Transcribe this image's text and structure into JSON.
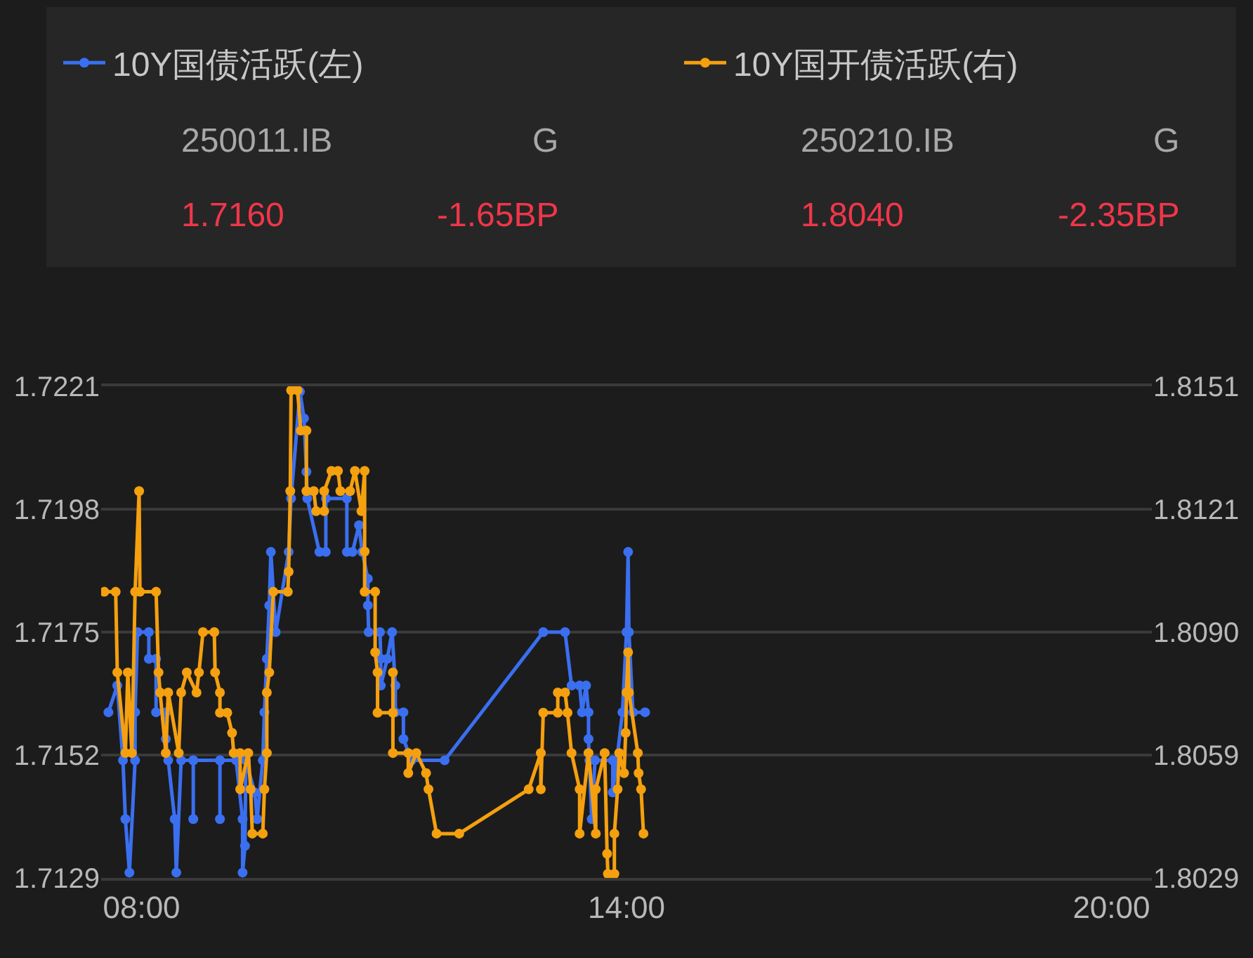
{
  "chart_data": {
    "type": "line",
    "xlim": [
      7.5,
      20.5
    ],
    "xticks": [
      {
        "value": 8,
        "label": "08:00"
      },
      {
        "value": 14,
        "label": "14:00"
      },
      {
        "value": 20,
        "label": "20:00"
      }
    ],
    "ylim": [
      1.7129,
      1.7221
    ],
    "yticks": [
      1.7129,
      1.7152,
      1.7175,
      1.7198,
      1.7221
    ],
    "y2lim": [
      1.8029,
      1.8151
    ],
    "y2ticks": [
      1.8029,
      {
        "value": 1.80595,
        "label": "1.8059"
      },
      {
        "value": 1.809,
        "label": "1.8090"
      },
      {
        "value": 1.81205,
        "label": "1.8121"
      },
      1.8151
    ],
    "grid": "y",
    "legend": "top",
    "marker": "circle",
    "line_style": "solid",
    "annotations": [
      "250011.IB",
      "G",
      "1.7160",
      "-1.65BP",
      "250210.IB",
      "G",
      "1.8040",
      "-2.35BP"
    ],
    "series": [
      {
        "name": "10Y国债活跃(左)",
        "color": "#3a6ff0",
        "x": [
          7.59,
          7.7,
          7.77,
          7.8,
          7.85,
          7.92,
          7.92,
          7.95,
          8.09,
          8.09,
          8.18,
          8.18,
          8.3,
          8.3,
          8.33,
          8.41,
          8.43,
          8.49,
          8.64,
          8.64,
          8.64,
          8.97,
          8.97,
          8.97,
          9.17,
          9.25,
          9.25,
          9.28,
          9.29,
          9.4,
          9.43,
          9.5,
          9.52,
          9.55,
          9.58,
          9.6,
          9.66,
          9.82,
          9.85,
          9.96,
          10.01,
          10.04,
          10.05,
          10.2,
          10.28,
          10.28,
          10.54,
          10.54,
          10.61,
          10.69,
          10.73,
          10.8,
          10.8,
          10.81,
          10.95,
          10.96,
          10.96,
          11.04,
          11.1,
          11.14,
          11.14,
          11.24,
          11.24,
          11.34,
          11.75,
          12.97,
          13.24,
          13.32,
          13.42,
          13.45,
          13.5,
          13.53,
          13.53,
          13.54,
          13.57,
          13.61,
          13.83,
          13.83,
          13.88,
          13.95,
          14.0,
          14.02,
          14.03,
          14.08,
          14.23
        ],
        "values": [
          1.716,
          1.7165,
          1.7151,
          1.714,
          1.713,
          1.7151,
          1.716,
          1.7175,
          1.7175,
          1.717,
          1.717,
          1.716,
          1.716,
          1.7155,
          1.7151,
          1.714,
          1.713,
          1.7151,
          1.7151,
          1.714,
          1.7151,
          1.7151,
          1.714,
          1.7151,
          1.7151,
          1.714,
          1.713,
          1.7135,
          1.7151,
          1.7145,
          1.714,
          1.7151,
          1.716,
          1.717,
          1.718,
          1.719,
          1.7175,
          1.719,
          1.72,
          1.722,
          1.7215,
          1.7205,
          1.72,
          1.719,
          1.719,
          1.72,
          1.72,
          1.719,
          1.719,
          1.7195,
          1.719,
          1.7185,
          1.718,
          1.7175,
          1.7175,
          1.717,
          1.7165,
          1.717,
          1.7175,
          1.7165,
          1.716,
          1.716,
          1.7155,
          1.7151,
          1.7151,
          1.7175,
          1.7175,
          1.7165,
          1.7165,
          1.716,
          1.7165,
          1.716,
          1.7155,
          1.7151,
          1.714,
          1.7151,
          1.7151,
          1.7145,
          1.7151,
          1.716,
          1.7175,
          1.719,
          1.7175,
          1.716,
          1.716
        ]
      },
      {
        "name": "10Y国开债活跃(右)",
        "color": "#f5a00f",
        "axis": "y2",
        "x": [
          7.54,
          7.68,
          7.7,
          7.8,
          7.83,
          7.88,
          7.92,
          7.97,
          7.98,
          8.18,
          8.21,
          8.23,
          8.3,
          8.33,
          8.46,
          8.49,
          8.56,
          8.68,
          8.71,
          8.76,
          8.9,
          8.91,
          8.97,
          8.97,
          9.06,
          9.12,
          9.14,
          9.22,
          9.22,
          9.32,
          9.35,
          9.37,
          9.5,
          9.52,
          9.55,
          9.55,
          9.58,
          9.63,
          9.81,
          9.82,
          9.84,
          9.85,
          9.93,
          9.97,
          10.04,
          10.04,
          10.13,
          10.16,
          10.26,
          10.26,
          10.35,
          10.43,
          10.46,
          10.58,
          10.64,
          10.72,
          10.76,
          10.76,
          10.76,
          10.89,
          10.89,
          10.92,
          10.92,
          11.11,
          11.11,
          11.11,
          11.3,
          11.3,
          11.4,
          11.52,
          11.55,
          11.65,
          11.93,
          12.79,
          12.94,
          12.94,
          12.97,
          13.15,
          13.15,
          13.24,
          13.27,
          13.32,
          13.42,
          13.42,
          13.53,
          13.62,
          13.62,
          13.73,
          13.76,
          13.77,
          13.85,
          13.85,
          13.89,
          13.91,
          13.97,
          13.99,
          14.0,
          14.02,
          14.03,
          14.14,
          14.15,
          14.18,
          14.21
        ],
        "values": [
          1.81,
          1.81,
          1.808,
          1.806,
          1.808,
          1.806,
          1.81,
          1.8125,
          1.81,
          1.81,
          1.808,
          1.8075,
          1.806,
          1.8075,
          1.806,
          1.8075,
          1.808,
          1.8075,
          1.808,
          1.809,
          1.809,
          1.808,
          1.8075,
          1.807,
          1.807,
          1.8065,
          1.806,
          1.806,
          1.8051,
          1.806,
          1.8051,
          1.804,
          1.804,
          1.8051,
          1.806,
          1.8075,
          1.808,
          1.81,
          1.81,
          1.8105,
          1.8125,
          1.815,
          1.815,
          1.814,
          1.814,
          1.8125,
          1.8125,
          1.812,
          1.812,
          1.8125,
          1.813,
          1.813,
          1.8125,
          1.8125,
          1.813,
          1.812,
          1.813,
          1.811,
          1.81,
          1.81,
          1.8085,
          1.808,
          1.807,
          1.807,
          1.808,
          1.806,
          1.806,
          1.8055,
          1.806,
          1.8055,
          1.8051,
          1.804,
          1.804,
          1.8051,
          1.806,
          1.8051,
          1.807,
          1.807,
          1.8075,
          1.8075,
          1.807,
          1.806,
          1.8051,
          1.804,
          1.806,
          1.804,
          1.8051,
          1.806,
          1.8035,
          1.803,
          1.803,
          1.804,
          1.8051,
          1.806,
          1.8055,
          1.8065,
          1.8075,
          1.8085,
          1.8075,
          1.806,
          1.8055,
          1.8051,
          1.804
        ]
      }
    ]
  }
}
